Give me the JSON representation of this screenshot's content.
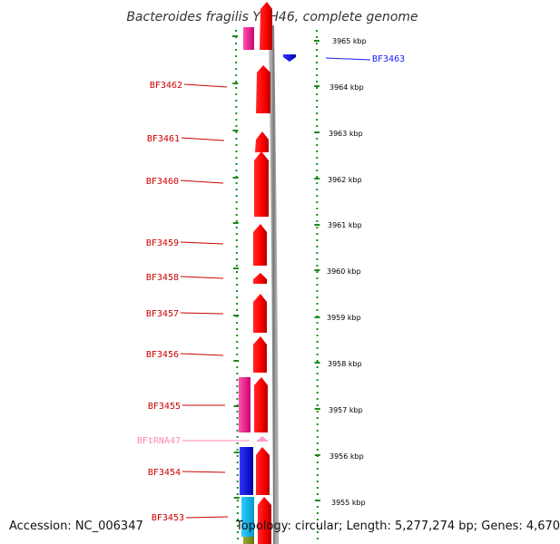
{
  "title": "Bacteroides fragilis YCH46, complete genome",
  "accession_text": "Accession: NC_006347",
  "topology_text": "Topology: circular; Length: 5,277,274 bp; Genes: 4,670",
  "colors": {
    "forward_gene": "#ff0000",
    "reverse_gene": "#1a1aff",
    "rna": "#ff66aa",
    "ruler": "#1a8a1a",
    "backbone": "#888888"
  },
  "kbp_ticks": [
    {
      "label": "3965 kbp"
    },
    {
      "label": "3964 kbp"
    },
    {
      "label": "3963 kbp"
    },
    {
      "label": "3962 kbp"
    },
    {
      "label": "3961 kbp"
    },
    {
      "label": "3960 kbp"
    },
    {
      "label": "3959 kbp"
    },
    {
      "label": "3958 kbp"
    },
    {
      "label": "3957 kbp"
    },
    {
      "label": "3956 kbp"
    },
    {
      "label": "3955 kbp"
    }
  ],
  "gene_labels": [
    {
      "name": "BF3463",
      "side": "right",
      "color": "#1a1aff"
    },
    {
      "name": "BF3462",
      "side": "left",
      "color": "#cc0000"
    },
    {
      "name": "BF3461",
      "side": "left",
      "color": "#cc0000"
    },
    {
      "name": "BF3460",
      "side": "left",
      "color": "#cc0000"
    },
    {
      "name": "BF3459",
      "side": "left",
      "color": "#cc0000"
    },
    {
      "name": "BF3458",
      "side": "left",
      "color": "#cc0000"
    },
    {
      "name": "BF3457",
      "side": "left",
      "color": "#cc0000"
    },
    {
      "name": "BF3456",
      "side": "left",
      "color": "#cc0000"
    },
    {
      "name": "BF3455",
      "side": "left",
      "color": "#cc0000"
    },
    {
      "name": "BFtRNA47",
      "side": "left",
      "color": "#ff88bb"
    },
    {
      "name": "BF3454",
      "side": "left",
      "color": "#cc0000"
    },
    {
      "name": "BF3453",
      "side": "left",
      "color": "#cc0000"
    }
  ]
}
